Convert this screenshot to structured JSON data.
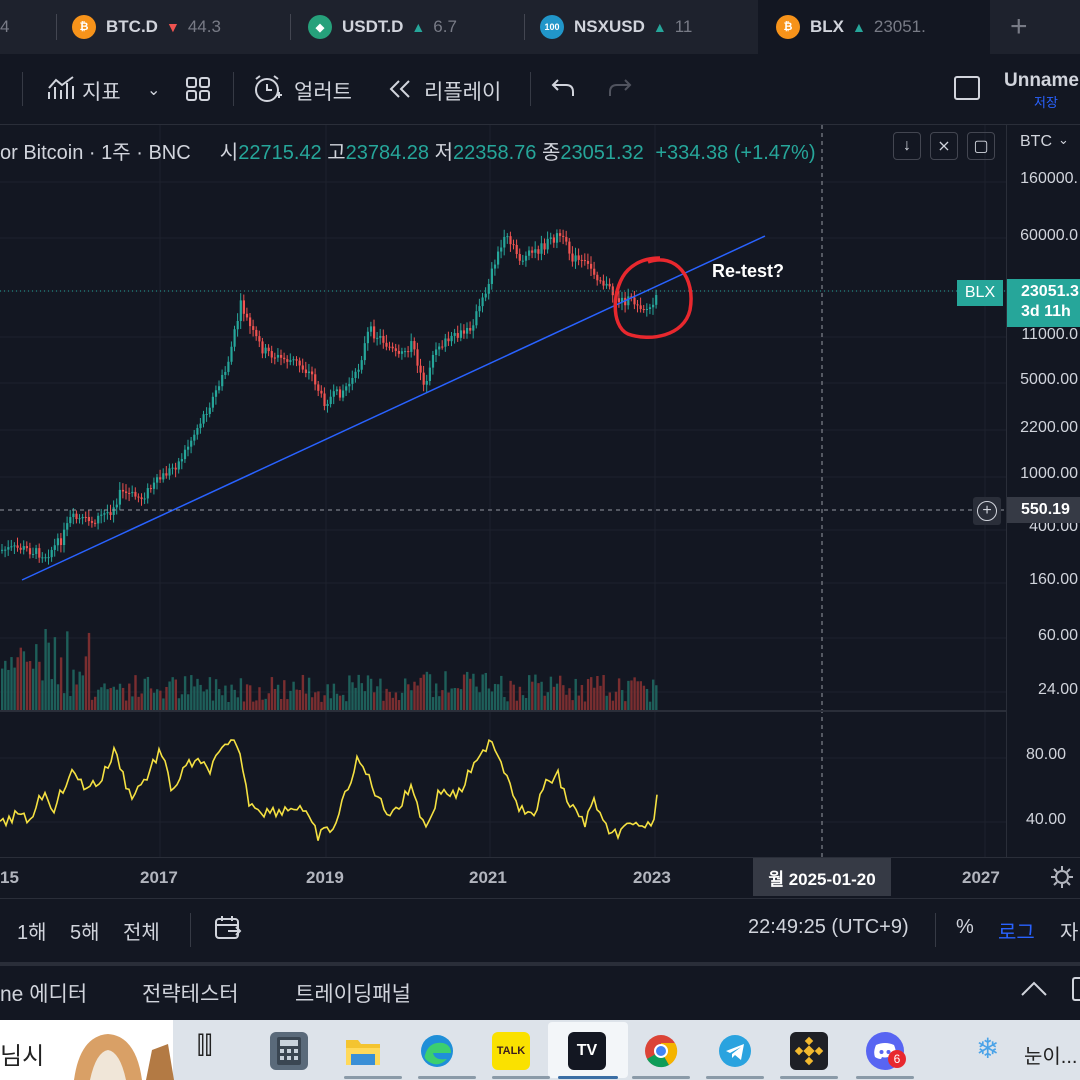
{
  "browser_tabs": [
    {
      "name": "tab-partial",
      "symbol": "",
      "arrow": "",
      "value": "4",
      "icon": "",
      "icon_color": "#787b86"
    },
    {
      "name": "tab-btcd",
      "symbol": "BTC.D",
      "arrow": "▼",
      "arrow_color": "#ef5350",
      "value": "44.3",
      "icon": "₿",
      "icon_color": "#f7931a"
    },
    {
      "name": "tab-usdtd",
      "symbol": "USDT.D",
      "arrow": "▲",
      "arrow_color": "#26a69a",
      "value": "6.7",
      "icon": "◆",
      "icon_color": "#26a17b"
    },
    {
      "name": "tab-nsxusd",
      "symbol": "NSXUSD",
      "arrow": "▲",
      "arrow_color": "#26a69a",
      "value": "11",
      "icon": "100",
      "icon_color": "#2196c9"
    },
    {
      "name": "tab-blx",
      "symbol": "BLX",
      "arrow": "▲",
      "arrow_color": "#26a69a",
      "value": "23051.",
      "icon": "₿",
      "icon_color": "#f7931a"
    }
  ],
  "new_tab_label": "+",
  "toolbar": {
    "indicators_label": "지표",
    "alerts_label": "얼러트",
    "replay_label": "리플레이",
    "layout_name": "Unname",
    "save_label": "저장"
  },
  "legend": {
    "title": "or Bitcoin · 1주 · BNC",
    "open_label": "시",
    "open": "22715.42",
    "high_label": "고",
    "high": "23784.28",
    "low_label": "저",
    "low": "22358.76",
    "close_label": "종",
    "close": "23051.32",
    "change": "+334.38 (+1.47%)"
  },
  "price_axis": {
    "currency": "BTC",
    "ticks": [
      "160000.",
      "60000.0",
      "11000.0",
      "5000.00",
      "2200.00",
      "1000.00",
      "400.00",
      "160.00",
      "60.00",
      "24.00"
    ],
    "rsi_ticks": [
      "80.00",
      "40.00"
    ],
    "last_price": "23051.3",
    "countdown": "3d 11h",
    "symbol_badge": "BLX",
    "crosshair_price": "550.19"
  },
  "annotation_text": "Re-test?",
  "time_axis": {
    "ticks": [
      "15",
      "2017",
      "2019",
      "2021",
      "2023",
      "2027"
    ],
    "crosshair_date": "월 2025-01-20"
  },
  "range_bar": {
    "ranges": [
      "1해",
      "5해",
      "전체"
    ],
    "clock": "22:49:25 (UTC+9)",
    "percent_label": "%",
    "log_label": "로그",
    "auto_label": "자"
  },
  "panel_bar": {
    "tabs": [
      "ne 에디터",
      "전략테스터",
      "트레이딩패널"
    ]
  },
  "taskbar": {
    "search_text": "님시",
    "weather_text": "눈이...",
    "notification_count": "6",
    "kakao_label": "TALK"
  },
  "colors": {
    "up": "#26a69a",
    "down": "#ef5350",
    "trendline": "#2962ff",
    "rsi": "#f5e142",
    "circle": "#e8282e",
    "bg": "#131722"
  }
}
